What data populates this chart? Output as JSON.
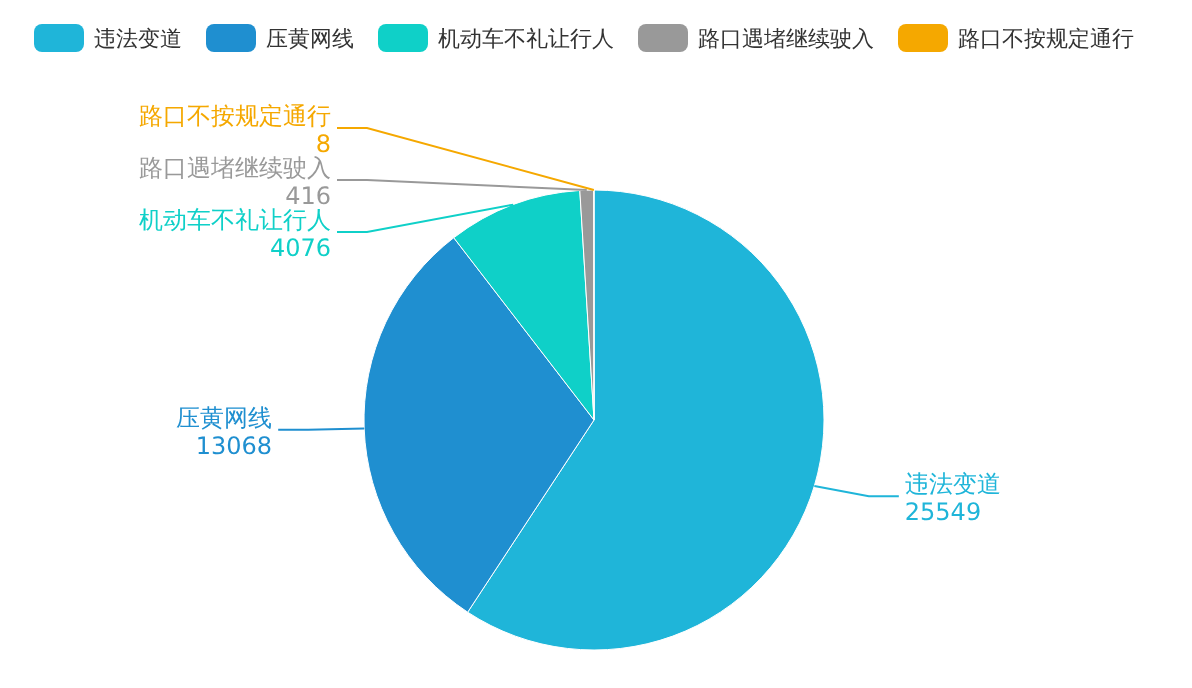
{
  "chart_data": {
    "type": "pie",
    "categories": [
      "违法变道",
      "压黄网线",
      "机动车不礼让行人",
      "路口遇堵继续驶入",
      "路口不按规定通行"
    ],
    "values": [
      25549,
      13068,
      4076,
      416,
      8
    ],
    "colors": [
      "#1fb5d9",
      "#1f8fd0",
      "#0fd0c8",
      "#999999",
      "#f5a800"
    ],
    "data_labels": true,
    "legend": "top"
  }
}
